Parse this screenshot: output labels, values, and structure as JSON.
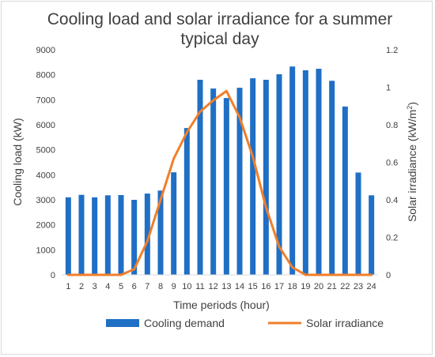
{
  "chart_data": {
    "type": "bar",
    "title_lines": [
      "Cooling load and solar irradiance for a summer",
      "typical day"
    ],
    "xlabel": "Time periods (hour)",
    "ylabel": "Cooling load (kW)",
    "y2label_main": "Solar irradiance (kW/m",
    "y2label_sup": "2",
    "y2label_end": ")",
    "categories": [
      "1",
      "2",
      "3",
      "4",
      "5",
      "6",
      "7",
      "8",
      "9",
      "10",
      "11",
      "12",
      "13",
      "14",
      "15",
      "16",
      "17",
      "18",
      "19",
      "20",
      "21",
      "22",
      "23",
      "24"
    ],
    "ylim": [
      0,
      9000
    ],
    "yticks": [
      "0",
      "1000",
      "2000",
      "3000",
      "4000",
      "5000",
      "6000",
      "7000",
      "8000",
      "9000"
    ],
    "y2lim": [
      0,
      1.2
    ],
    "y2ticks": [
      "0",
      "0.2",
      "0.4",
      "0.6",
      "0.8",
      "1",
      "1.2"
    ],
    "grid": false,
    "legend_position": "bottom",
    "series": [
      {
        "name": "Cooling demand",
        "type": "bar",
        "axis": "left",
        "color": "#1f6fc5",
        "values": [
          3100,
          3200,
          3100,
          3180,
          3190,
          3000,
          3250,
          3370,
          4100,
          5870,
          7800,
          7450,
          7070,
          7480,
          7860,
          7800,
          8020,
          8330,
          8180,
          8240,
          7760,
          6730,
          4090,
          3180
        ]
      },
      {
        "name": "Solar irradiance",
        "type": "line",
        "axis": "right",
        "color": "#f07f2a",
        "values": [
          0,
          0,
          0,
          0,
          0,
          0.03,
          0.18,
          0.4,
          0.62,
          0.76,
          0.87,
          0.93,
          0.98,
          0.84,
          0.63,
          0.36,
          0.15,
          0.04,
          0,
          0,
          0,
          0,
          0,
          0
        ]
      }
    ]
  }
}
